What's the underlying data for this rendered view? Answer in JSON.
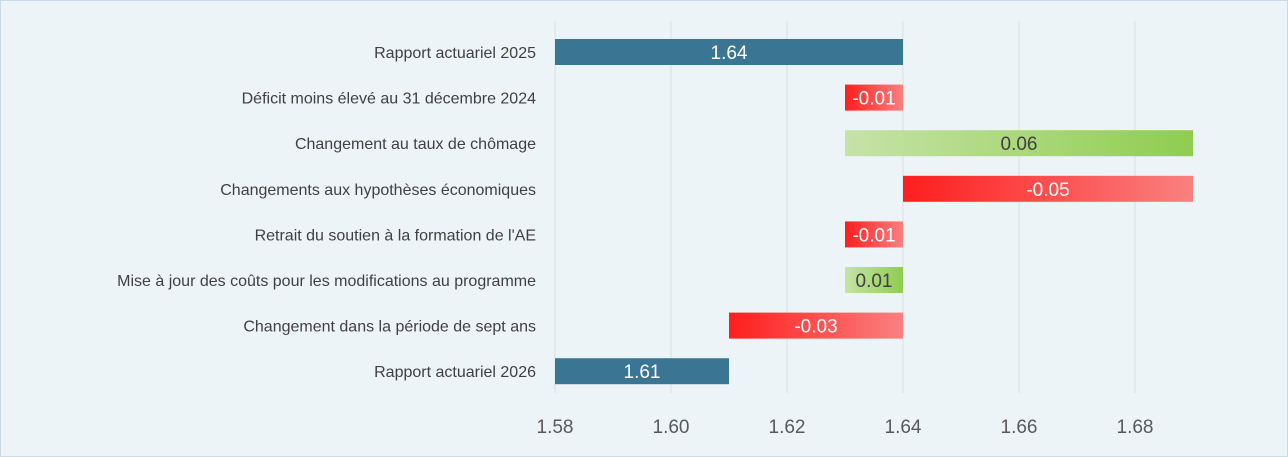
{
  "chart_data": {
    "type": "bar",
    "orientation": "horizontal",
    "variant": "waterfall",
    "title": "",
    "xlabel": "",
    "ylabel": "",
    "xlim": [
      1.58,
      1.69
    ],
    "grid": true,
    "categories": [
      "Rapport actuariel 2025",
      "Déficit moins élevé au 31 décembre 2024",
      "Changement au taux de chômage",
      "Changements aux hypothèses économiques",
      "Retrait du soutien à la formation de l'AE",
      "Mise à jour des coûts pour les modifications au programme",
      "Changement dans la période de sept ans",
      "Rapport actuariel 2026"
    ],
    "bars": [
      {
        "start": 1.58,
        "end": 1.64,
        "label": "1.64",
        "kind": "total"
      },
      {
        "start": 1.63,
        "end": 1.64,
        "label": "-0.01",
        "kind": "decrease"
      },
      {
        "start": 1.63,
        "end": 1.69,
        "label": "0.06",
        "kind": "increase"
      },
      {
        "start": 1.64,
        "end": 1.69,
        "label": "-0.05",
        "kind": "decrease"
      },
      {
        "start": 1.63,
        "end": 1.64,
        "label": "-0.01",
        "kind": "decrease"
      },
      {
        "start": 1.63,
        "end": 1.64,
        "label": "0.01",
        "kind": "increase"
      },
      {
        "start": 1.61,
        "end": 1.64,
        "label": "-0.03",
        "kind": "decrease"
      },
      {
        "start": 1.58,
        "end": 1.61,
        "label": "1.61",
        "kind": "total"
      }
    ],
    "x_ticks": [
      "1.58",
      "1.60",
      "1.62",
      "1.64",
      "1.66",
      "1.68"
    ],
    "tick_values": [
      1.58,
      1.6,
      1.62,
      1.64,
      1.66,
      1.68
    ],
    "colors": {
      "total": "#3b7594",
      "increase_from": "#c6e3a8",
      "increase_to": "#8fcd4f",
      "decrease_from": "#ff1e1e",
      "decrease_to": "#fa8080",
      "grid": "#d9dfe3",
      "label_light": "#ffffff",
      "label_dark": "#404040"
    }
  }
}
